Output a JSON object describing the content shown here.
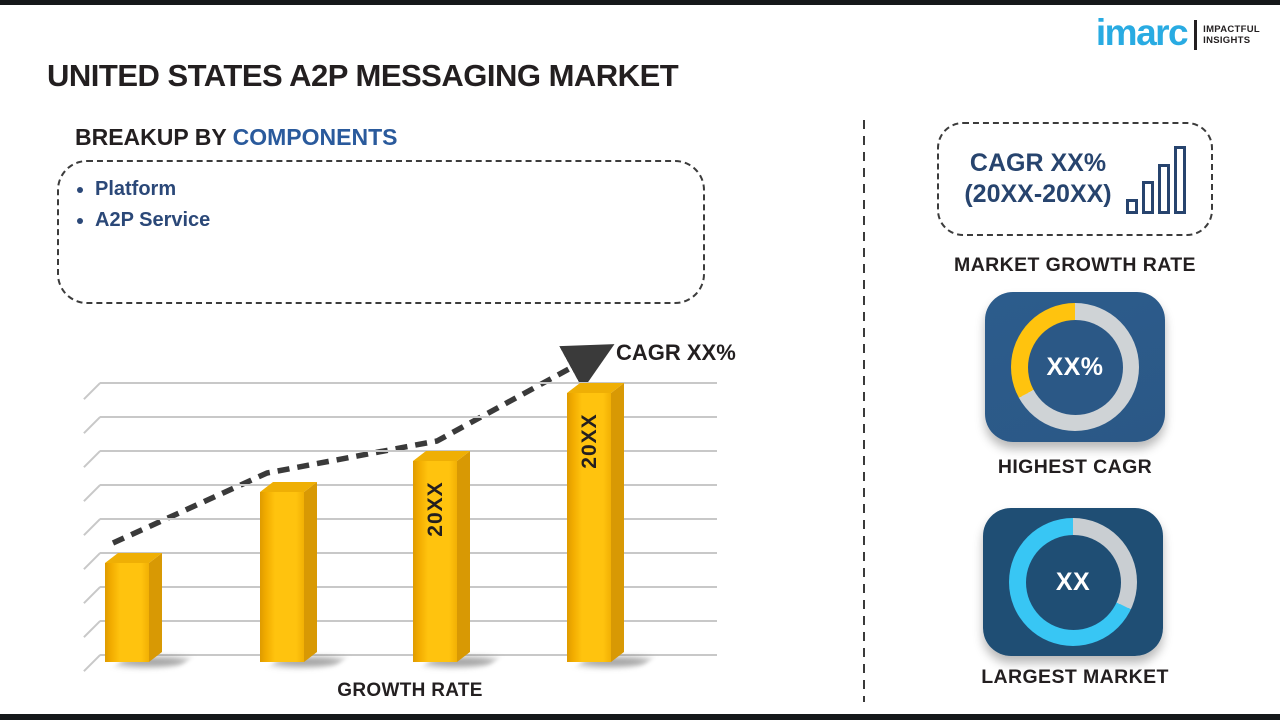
{
  "logo": {
    "brand": "imarc",
    "tagline_line1": "IMPACTFUL",
    "tagline_line2": "INSIGHTS",
    "brand_color": "#29ABE2"
  },
  "title": "UNITED STATES A2P MESSAGING MARKET",
  "breakup": {
    "heading_prefix": "BREAKUP BY ",
    "heading_accent": "COMPONENTS",
    "accent_color": "#2A5A9C",
    "items": [
      "Platform",
      "A2P Service"
    ]
  },
  "chart_data": {
    "type": "bar",
    "title": "",
    "xlabel": "GROWTH RATE",
    "ylabel": "",
    "categories": [
      "",
      "",
      "20XX",
      "20XX"
    ],
    "bar_labels": [
      "",
      "",
      "20XX",
      "20XX"
    ],
    "values": [
      2.9,
      5.0,
      5.9,
      7.9
    ],
    "ylim": [
      0,
      9.5
    ],
    "gridline_count": 9,
    "grid": true,
    "legend": false,
    "annotation": "CAGR XX%",
    "bar_color": "#FFC30E",
    "trend_points": [
      [
        53,
        205
      ],
      [
        207,
        135
      ],
      [
        377,
        103
      ],
      [
        540,
        14
      ]
    ]
  },
  "sidebar": {
    "growth_box": {
      "line1": "CAGR XX%",
      "line2": "(20XX-20XX)"
    },
    "growth_box_label": "MARKET GROWTH RATE",
    "tiles": [
      {
        "value": "XX%",
        "label": "HIGHEST CAGR",
        "tile_color": "#2C5C8C",
        "hole_color": "#2B5886",
        "ring_base": "#CFD3D6",
        "arc_color": "#FFC30E",
        "arc_from_pct": 67
      },
      {
        "value": "XX",
        "label": "LARGEST MARKET",
        "tile_color": "#1F4E74",
        "hole_color": "#1F4E74",
        "ring_base": "#C9CED2",
        "arc_color": "#38C6F4",
        "arc_from_pct": 32
      }
    ]
  }
}
